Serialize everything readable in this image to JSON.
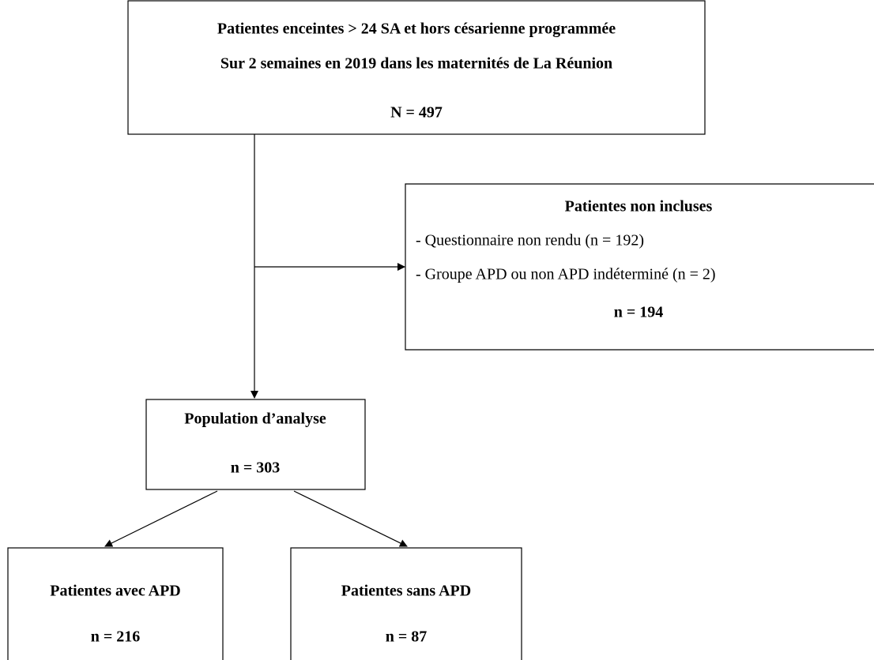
{
  "nodes": [
    {
      "lines": [
        "Patientes enceintes > 24 SA et hors césarienne programmée",
        "Sur 2 semaines en 2019 dans les maternités de La Réunion",
        "N = 497"
      ]
    },
    {
      "title": "Patientes non incluses",
      "items": [
        "- Questionnaire non rendu (n = 192)",
        "- Groupe APD ou non APD indéterminé (n = 2)"
      ],
      "total": "n = 194"
    },
    {
      "lines": [
        "Population d’analyse",
        "n = 303"
      ]
    },
    {
      "lines": [
        "Patientes avec APD",
        "n = 216"
      ]
    },
    {
      "lines": [
        "Patientes sans APD",
        "n = 87"
      ]
    }
  ]
}
